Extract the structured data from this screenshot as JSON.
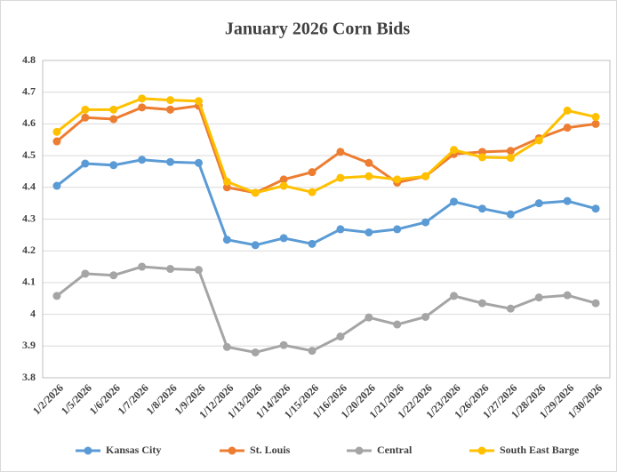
{
  "chart_data": {
    "type": "line",
    "title": "January 2026 Corn Bids",
    "categories": [
      "1/2/2026",
      "1/5/2026",
      "1/6/2026",
      "1/7/2026",
      "1/8/2026",
      "1/9/2026",
      "1/12/2026",
      "1/13/2026",
      "1/14/2026",
      "1/15/2026",
      "1/16/2026",
      "1/20/2026",
      "1/21/2026",
      "1/22/2026",
      "1/23/2026",
      "1/26/2026",
      "1/27/2026",
      "1/28/2026",
      "1/29/2026",
      "1/30/2026"
    ],
    "series": [
      {
        "name": "Kansas City",
        "color": "#5b9bd5",
        "values": [
          4.405,
          4.475,
          4.47,
          4.487,
          4.48,
          4.477,
          4.235,
          4.218,
          4.24,
          4.222,
          4.268,
          4.258,
          4.268,
          4.29,
          4.355,
          4.333,
          4.315,
          4.35,
          4.357,
          4.333
        ]
      },
      {
        "name": "St. Louis",
        "color": "#ed7d31",
        "values": [
          4.545,
          4.62,
          4.615,
          4.652,
          4.645,
          4.657,
          4.4,
          4.383,
          4.425,
          4.448,
          4.512,
          4.477,
          4.415,
          4.435,
          4.505,
          4.512,
          4.515,
          4.555,
          4.588,
          4.6
        ]
      },
      {
        "name": "Central",
        "color": "#a5a5a5",
        "values": [
          4.058,
          4.128,
          4.123,
          4.15,
          4.143,
          4.14,
          3.897,
          3.88,
          3.903,
          3.885,
          3.93,
          3.99,
          3.968,
          3.992,
          4.058,
          4.035,
          4.018,
          4.053,
          4.06,
          4.035
        ]
      },
      {
        "name": "South East Barge",
        "color": "#ffc000",
        "values": [
          4.575,
          4.645,
          4.645,
          4.68,
          4.675,
          4.672,
          4.418,
          4.383,
          4.405,
          4.385,
          4.43,
          4.435,
          4.425,
          4.435,
          4.518,
          4.495,
          4.493,
          4.548,
          4.642,
          4.622
        ]
      }
    ],
    "ylim": [
      3.8,
      4.8
    ],
    "yticks": [
      3.8,
      3.9,
      4,
      4.1,
      4.2,
      4.3,
      4.4,
      4.5,
      4.6,
      4.7,
      4.8
    ],
    "grid": true,
    "legend": "bottom"
  }
}
